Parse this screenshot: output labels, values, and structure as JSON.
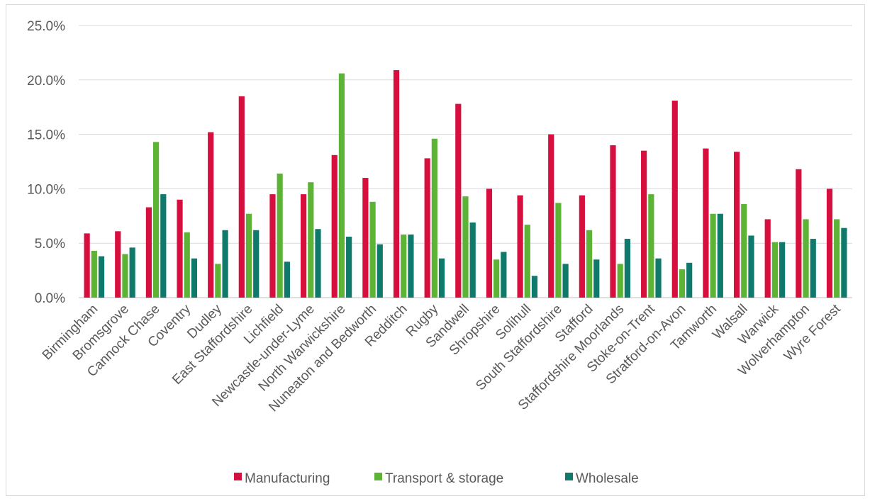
{
  "chart_data": {
    "type": "bar",
    "title": "",
    "xlabel": "",
    "ylabel": "",
    "ylim": [
      0,
      25
    ],
    "y_ticks": [
      "0.0%",
      "5.0%",
      "10.0%",
      "15.0%",
      "20.0%",
      "25.0%"
    ],
    "y_tick_values": [
      0,
      5,
      10,
      15,
      20,
      25
    ],
    "grid": true,
    "legend_position": "bottom",
    "categories": [
      "Birmingham",
      "Bromsgrove",
      "Cannock Chase",
      "Coventry",
      "Dudley",
      "East Staffordshire",
      "Lichfield",
      "Newcastle-under-Lyme",
      "North Warwickshire",
      "Nuneaton and Bedworth",
      "Redditch",
      "Rugby",
      "Sandwell",
      "Shropshire",
      "Solihull",
      "South Staffordshire",
      "Stafford",
      "Staffordshire Moorlands",
      "Stoke-on-Trent",
      "Stratford-on-Avon",
      "Tamworth",
      "Walsall",
      "Warwick",
      "Wolverhampton",
      "Wyre Forest"
    ],
    "series": [
      {
        "name": "Manufacturing",
        "color": "#d70f3f",
        "values": [
          5.9,
          6.1,
          8.3,
          9.0,
          15.2,
          18.5,
          9.5,
          9.5,
          13.1,
          11.0,
          20.9,
          12.8,
          17.8,
          10.0,
          9.4,
          15.0,
          9.4,
          14.0,
          13.5,
          18.1,
          13.7,
          13.4,
          7.2,
          11.8,
          10.0
        ]
      },
      {
        "name": "Transport & storage",
        "color": "#5cb335",
        "values": [
          4.3,
          4.0,
          14.3,
          6.0,
          3.1,
          7.7,
          11.4,
          10.6,
          20.6,
          8.8,
          5.8,
          14.6,
          9.3,
          3.5,
          6.7,
          8.7,
          6.2,
          3.1,
          9.5,
          2.6,
          7.7,
          8.6,
          5.1,
          7.2,
          7.2
        ]
      },
      {
        "name": "Wholesale",
        "color": "#0f7a6c",
        "values": [
          3.8,
          4.6,
          9.5,
          3.6,
          6.2,
          6.2,
          3.3,
          6.3,
          5.6,
          4.9,
          5.8,
          3.6,
          6.9,
          4.2,
          2.0,
          3.1,
          3.5,
          5.4,
          3.6,
          3.2,
          7.7,
          5.7,
          5.1,
          5.4,
          6.4
        ]
      }
    ]
  }
}
